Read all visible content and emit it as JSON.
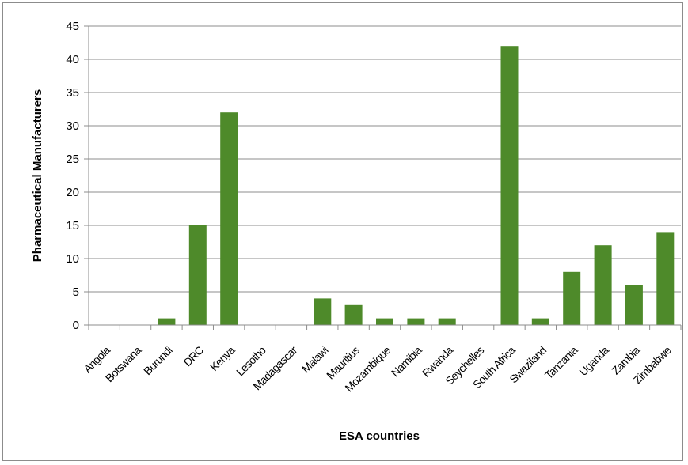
{
  "chart_data": {
    "type": "bar",
    "categories": [
      "Angola",
      "Botswana",
      "Burundi",
      "DRC",
      "Kenya",
      "Lesotho",
      "Madagascar",
      "Malawi",
      "Mauritius",
      "Mozambique",
      "Namibia",
      "Rwanda",
      "Seychelles",
      "South Africa",
      "Swaziland",
      "Tanzania",
      "Uganda",
      "Zambia",
      "Zimbabwe"
    ],
    "values": [
      0,
      0,
      1,
      15,
      32,
      0,
      0,
      4,
      3,
      1,
      1,
      1,
      0,
      42,
      1,
      8,
      12,
      6,
      14
    ],
    "xlabel": "ESA countries",
    "ylabel": "Pharmaceutical Manufacturers",
    "ylim": [
      0,
      45
    ],
    "yticks": [
      "0",
      "5",
      "10",
      "15",
      "20",
      "25",
      "30",
      "35",
      "40",
      "45"
    ],
    "grid": true,
    "legend": "none",
    "bar_color": "#4e8a2a"
  }
}
